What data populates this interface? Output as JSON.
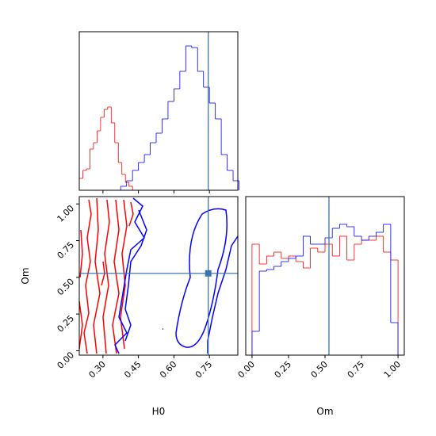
{
  "chart_data": [
    {
      "type": "histogram",
      "xlim": [
        0.2,
        0.87
      ],
      "ylim": [
        0,
        200
      ],
      "truth": 0.745,
      "truth_color": "#3b75af",
      "series": [
        {
          "color": "#ff0000",
          "bins": [
            0.2,
            0.215,
            0.23,
            0.245,
            0.26,
            0.275,
            0.29,
            0.305,
            0.32,
            0.335,
            0.35,
            0.365,
            0.38,
            0.395,
            0.41,
            0.425
          ],
          "values": [
            15,
            25,
            27,
            52,
            60,
            75,
            92,
            102,
            105,
            85,
            60,
            35,
            20,
            10,
            5
          ]
        },
        {
          "color": "#0000ff",
          "bins": [
            0.375,
            0.4,
            0.425,
            0.45,
            0.475,
            0.5,
            0.525,
            0.55,
            0.575,
            0.6,
            0.625,
            0.65,
            0.675,
            0.7,
            0.725,
            0.75,
            0.775,
            0.8,
            0.825,
            0.85,
            0.875
          ],
          "values": [
            5,
            12,
            25,
            35,
            45,
            60,
            72,
            90,
            112,
            128,
            150,
            182,
            180,
            150,
            130,
            110,
            90,
            45,
            25,
            12
          ]
        }
      ]
    },
    {
      "type": "contour",
      "xlim": [
        0.2,
        0.87
      ],
      "ylim": [
        -0.03,
        1.05
      ],
      "truth": [
        0.745,
        0.527
      ],
      "truth_color": "#3b75af",
      "xlabel": "H0",
      "ylabel": "Om",
      "xticks": [
        {
          "value": 0.3,
          "label": "0.30"
        },
        {
          "value": 0.45,
          "label": "0.45"
        },
        {
          "value": 0.6,
          "label": "0.60"
        },
        {
          "value": 0.75,
          "label": "0.75"
        }
      ],
      "yticks": [
        {
          "value": 0,
          "label": "0.00"
        },
        {
          "value": 0.25,
          "label": "0.25"
        },
        {
          "value": 0.5,
          "label": "0.50"
        },
        {
          "value": 0.75,
          "label": "0.75"
        },
        {
          "value": 1,
          "label": "1.00"
        }
      ]
    },
    {
      "type": "histogram",
      "xlim": [
        -0.043,
        1.043
      ],
      "ylim": [
        0,
        200
      ],
      "truth": 0.527,
      "truth_color": "#3b75af",
      "xlabel": "Om",
      "xticks": [
        {
          "value": 0,
          "label": "0.00"
        },
        {
          "value": 0.25,
          "label": "0.25"
        },
        {
          "value": 0.5,
          "label": "0.50"
        },
        {
          "value": 0.75,
          "label": "0.75"
        },
        {
          "value": 1,
          "label": "1.00"
        }
      ],
      "series": [
        {
          "color": "#ff0000",
          "bins": [
            0,
            0.05,
            0.1,
            0.15,
            0.2,
            0.25,
            0.3,
            0.35,
            0.4,
            0.45,
            0.5,
            0.55,
            0.6,
            0.65,
            0.7,
            0.75,
            0.8,
            0.85,
            0.9,
            0.95,
            1
          ],
          "values": [
            140,
            115,
            125,
            130,
            122,
            125,
            118,
            110,
            135,
            130,
            140,
            125,
            150,
            120,
            140,
            145,
            145,
            150,
            130,
            120
          ]
        },
        {
          "color": "#0000ff",
          "bins": [
            0,
            0.05,
            0.1,
            0.15,
            0.2,
            0.25,
            0.3,
            0.35,
            0.4,
            0.45,
            0.5,
            0.55,
            0.6,
            0.65,
            0.7,
            0.75,
            0.8,
            0.85,
            0.9,
            0.95,
            1
          ],
          "values": [
            30,
            106,
            108,
            112,
            118,
            122,
            125,
            150,
            140,
            140,
            148,
            160,
            165,
            162,
            150,
            145,
            150,
            155,
            165,
            41
          ]
        }
      ]
    }
  ]
}
